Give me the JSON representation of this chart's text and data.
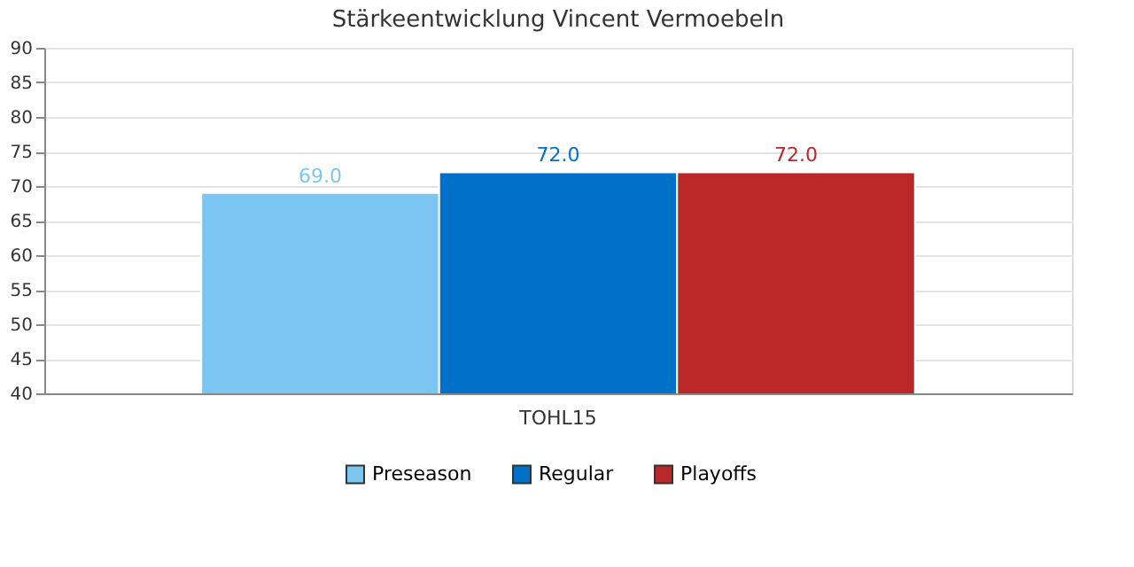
{
  "chart_data": {
    "type": "bar",
    "title": "Stärkeentwicklung Vincent Vermoebeln",
    "categories": [
      "TOHL15"
    ],
    "series": [
      {
        "name": "Preseason",
        "color": "#7bc6f0",
        "values": [
          69.0
        ],
        "value_labels": [
          "69.0"
        ]
      },
      {
        "name": "Regular",
        "color": "#0070c8",
        "values": [
          72.0
        ],
        "value_labels": [
          "72.0"
        ]
      },
      {
        "name": "Playoffs",
        "color": "#bb2828",
        "values": [
          72.0
        ],
        "value_labels": [
          "72.0"
        ]
      }
    ],
    "ylim": [
      40,
      90
    ],
    "yticks": [
      40,
      45,
      50,
      55,
      60,
      65,
      70,
      75,
      80,
      85,
      90
    ],
    "grid": "y",
    "legend": "bottom"
  }
}
